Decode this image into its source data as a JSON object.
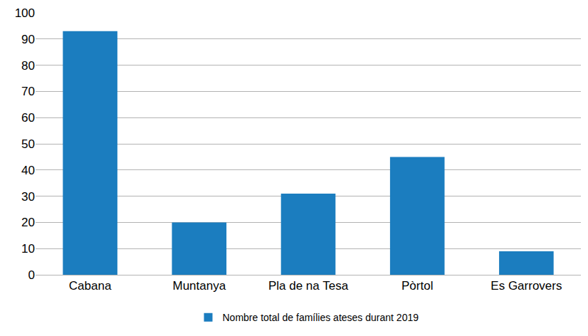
{
  "chart_data": {
    "type": "bar",
    "categories": [
      "Cabana",
      "Muntanya",
      "Pla de na Tesa",
      "Pòrtol",
      "Es Garrovers"
    ],
    "series": [
      {
        "name": "Nombre total de famílies ateses durant 2019",
        "color": "#1b7dbf",
        "values": [
          93,
          20,
          31,
          45,
          9
        ]
      }
    ],
    "ylim": [
      0,
      100
    ],
    "yticks": [
      0,
      10,
      20,
      30,
      40,
      50,
      60,
      70,
      80,
      90,
      100
    ],
    "grid": true,
    "legend": "bottom"
  }
}
